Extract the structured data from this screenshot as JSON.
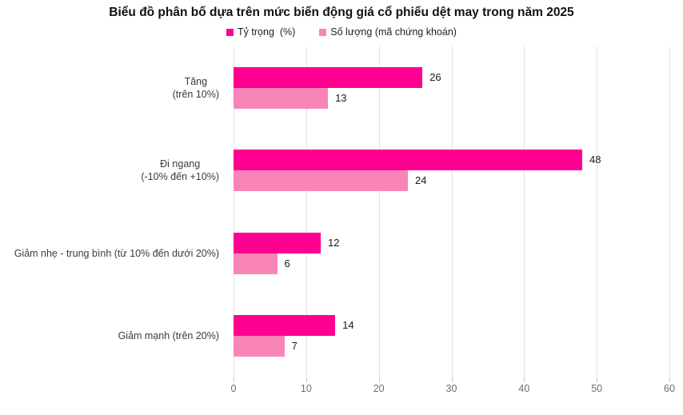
{
  "title": "Biểu đồ phân bố dựa trên mức biến động giá cổ phiếu dệt may trong năm 2025",
  "legend": [
    {
      "label": "Tỷ trọng  (%)",
      "color": "#FF0090"
    },
    {
      "label": "Số lượng (mã chứng khoán)",
      "color": "#F985B8"
    }
  ],
  "chart_data": {
    "type": "bar",
    "orientation": "horizontal",
    "title": "Biểu đồ phân bố dựa trên mức biến động giá cổ phiếu dệt may trong năm 2025",
    "categories": [
      "Tăng\n(trên 10%)",
      "Đi ngang\n(-10% đến +10%)",
      "Giảm nhẹ - trung bình (từ 10% đến dưới 20%)",
      "Giảm mạnh (trên 20%)"
    ],
    "series": [
      {
        "name": "Tỷ trọng  (%)",
        "color": "#FF0090",
        "values": [
          26,
          48,
          12,
          14
        ]
      },
      {
        "name": "Số lượng (mã chứng khoán)",
        "color": "#F985B8",
        "values": [
          13,
          24,
          6,
          7
        ]
      }
    ],
    "xlim": [
      0,
      60
    ],
    "x_ticks": [
      0,
      10,
      20,
      30,
      40,
      50,
      60
    ],
    "grid": "vertical",
    "legend_position": "top",
    "data_labels": "outside-end"
  }
}
